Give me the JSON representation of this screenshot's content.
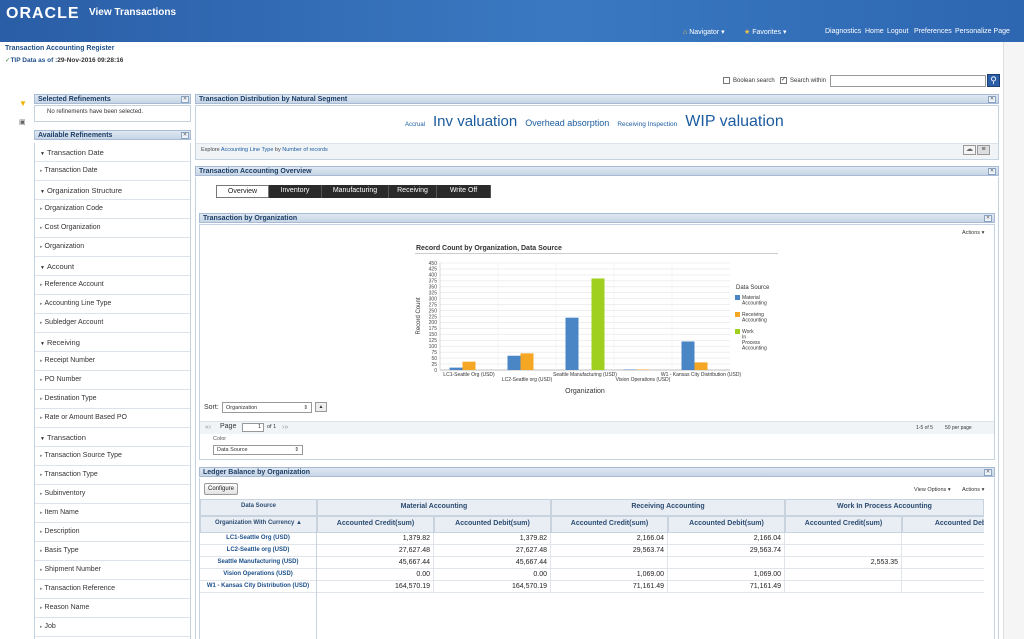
{
  "header": {
    "logo": "ORACLE",
    "app_title": "View Transactions",
    "navigator": "Navigator",
    "favorites": "Favorites",
    "links": [
      "Diagnostics",
      "Home",
      "Logout",
      "Preferences",
      "Personalize Page"
    ]
  },
  "page": {
    "title": "Transaction Accounting Register",
    "data_as_of_label": "TIP Data as of :",
    "data_as_of_value": "29-Nov-2016 09:28:16"
  },
  "search": {
    "boolean_label": "Boolean search",
    "within_label": "Search within",
    "boolean_checked": false,
    "within_checked": true
  },
  "selected_refinements": {
    "title": "Selected Refinements",
    "empty_text": "No refinements have been selected."
  },
  "available_refinements": {
    "title": "Available Refinements",
    "items": [
      {
        "label": "Transaction Date",
        "header": true
      },
      {
        "label": "Transaction Date",
        "header": false
      },
      {
        "label": "Organization Structure",
        "header": true
      },
      {
        "label": "Organization Code",
        "header": false
      },
      {
        "label": "Cost Organization",
        "header": false
      },
      {
        "label": "Organization",
        "header": false
      },
      {
        "label": "Account",
        "header": true
      },
      {
        "label": "Reference Account",
        "header": false
      },
      {
        "label": "Accounting Line Type",
        "header": false
      },
      {
        "label": "Subledger Account",
        "header": false
      },
      {
        "label": "Receiving",
        "header": true
      },
      {
        "label": "Receipt Number",
        "header": false
      },
      {
        "label": "PO Number",
        "header": false
      },
      {
        "label": "Destination Type",
        "header": false
      },
      {
        "label": "Rate or Amount Based PO",
        "header": false
      },
      {
        "label": "Transaction",
        "header": true
      },
      {
        "label": "Transaction Source Type",
        "header": false
      },
      {
        "label": "Transaction Type",
        "header": false
      },
      {
        "label": "Subinventory",
        "header": false
      },
      {
        "label": "Item Name",
        "header": false
      },
      {
        "label": "Description",
        "header": false
      },
      {
        "label": "Basis Type",
        "header": false
      },
      {
        "label": "Shipment Number",
        "header": false
      },
      {
        "label": "Transaction Reference",
        "header": false
      },
      {
        "label": "Reason Name",
        "header": false
      },
      {
        "label": "Job",
        "header": false
      }
    ]
  },
  "distribution": {
    "title": "Transaction Distribution by Natural Segment",
    "terms": [
      {
        "text": "Accrual",
        "size": 6
      },
      {
        "text": "Inv valuation",
        "size": 15
      },
      {
        "text": "Overhead absorption",
        "size": 9
      },
      {
        "text": "Receiving Inspection",
        "size": 6.5
      },
      {
        "text": "WIP valuation",
        "size": 16
      }
    ],
    "explore_prefix": "Explore",
    "explore_field": "Accounting Line Type",
    "explore_by": "by",
    "explore_metric": "Number of records"
  },
  "overview": {
    "title": "Transaction Accounting Overview",
    "tabs": [
      "Overview",
      "Inventory",
      "Manufacturing",
      "Receiving",
      "Write Off"
    ]
  },
  "by_org": {
    "title": "Transaction by Organization",
    "actions": "Actions",
    "sort_label": "Sort:",
    "sort_value": "Organization",
    "page_label": "Page",
    "page_value": "1",
    "of_label": "of 1",
    "range_text": "1-5 of 5",
    "per_page": "50 per page",
    "color_label": "Color",
    "color_value": "Data Source"
  },
  "chart_data": {
    "type": "bar",
    "title": "Record Count by Organization, Data Source",
    "xlabel": "Organization",
    "ylabel": "Record Count",
    "ylim": [
      0,
      450
    ],
    "yticks": [
      0,
      25,
      50,
      75,
      100,
      125,
      150,
      175,
      200,
      225,
      250,
      275,
      300,
      325,
      350,
      375,
      400,
      425,
      450
    ],
    "categories": [
      "LC1-Seattle Org (USD)",
      "LC2-Seattle org (USD)",
      "Seattle Manufacturing (USD)",
      "Vision Operations (USD)",
      "W1 - Kansas City Distribution (USD)"
    ],
    "legend_title": "Data Source",
    "series": [
      {
        "name": "Material Accounting",
        "color": "#4a86c5",
        "values": [
          10,
          60,
          220,
          2,
          120
        ]
      },
      {
        "name": "Receiving Accounting",
        "color": "#f5a623",
        "values": [
          35,
          70,
          0,
          2,
          32
        ]
      },
      {
        "name": "Work In Process Accounting",
        "color": "#9fd020",
        "values": [
          0,
          0,
          385,
          0,
          0
        ]
      }
    ]
  },
  "ledger": {
    "title": "Ledger Balance by Organization",
    "configure": "Configure",
    "view_options": "View Options",
    "actions": "Actions",
    "data_source_hdr": "Data Source",
    "org_hdr": "Organization With Currency",
    "groups": [
      "Material Accounting",
      "Receiving Accounting",
      "Work In Process Accounting"
    ],
    "cols": [
      "Accounted Credit(sum)",
      "Accounted Debit(sum)",
      "Accounted Credit(sum)",
      "Accounted Debit(sum)",
      "Accounted Credit(sum)",
      "Accounted Deb"
    ],
    "rows": [
      {
        "org": "LC1-Seattle Org (USD)",
        "vals": [
          "1,379.82",
          "1,379.82",
          "2,166.04",
          "2,166.04",
          "",
          ""
        ]
      },
      {
        "org": "LC2-Seattle org (USD)",
        "vals": [
          "27,627.48",
          "27,627.48",
          "29,563.74",
          "29,563.74",
          "",
          ""
        ]
      },
      {
        "org": "Seattle Manufacturing (USD)",
        "vals": [
          "45,667.44",
          "45,667.44",
          "",
          "",
          "2,553.35",
          ""
        ]
      },
      {
        "org": "Vision Operations (USD)",
        "vals": [
          "0.00",
          "0.00",
          "1,069.00",
          "1,069.00",
          "",
          ""
        ]
      },
      {
        "org": "W1 - Kansas City Distribution (USD)",
        "vals": [
          "164,570.19",
          "164,570.19",
          "71,161.49",
          "71,161.49",
          "",
          ""
        ]
      }
    ]
  }
}
